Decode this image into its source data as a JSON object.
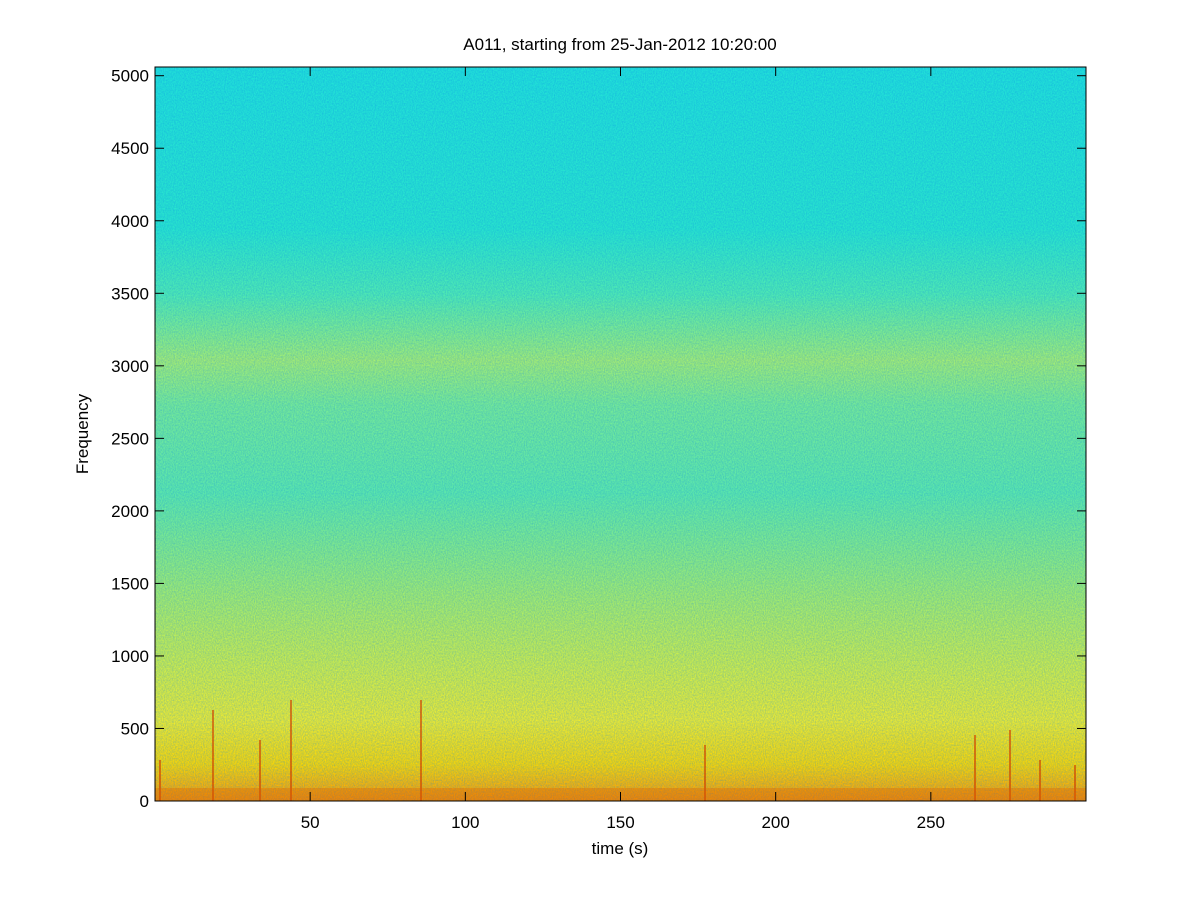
{
  "chart_data": {
    "type": "spectrogram",
    "title": "A011, starting from 25-Jan-2012 10:20:00",
    "xlabel": "time (s)",
    "ylabel": "Frequency",
    "xlim": [
      0,
      300
    ],
    "xticks": [
      50,
      100,
      150,
      200,
      250
    ],
    "ylim": [
      0,
      5060
    ],
    "yticks": [
      0,
      500,
      1000,
      1500,
      2000,
      2500,
      3000,
      3500,
      4000,
      4500,
      5000
    ]
  }
}
